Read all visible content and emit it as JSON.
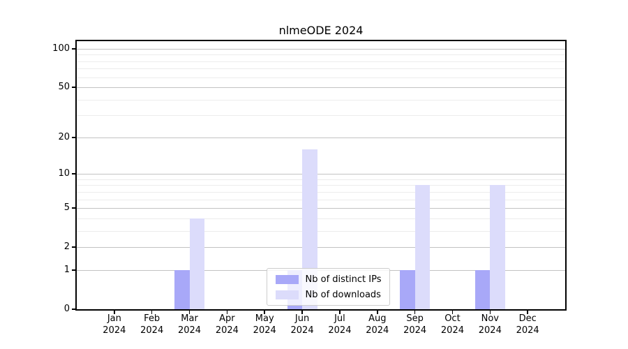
{
  "chart_data": {
    "type": "bar",
    "title": "nlmeODE 2024",
    "categories": [
      "Jan 2024",
      "Feb 2024",
      "Mar 2024",
      "Apr 2024",
      "May 2024",
      "Jun 2024",
      "Jul 2024",
      "Aug 2024",
      "Sep 2024",
      "Oct 2024",
      "Nov 2024",
      "Dec 2024"
    ],
    "series": [
      {
        "name": "Nb of distinct IPs",
        "color": "#a8a8f8",
        "values": [
          0,
          0,
          1,
          0,
          0,
          1,
          0,
          0,
          1,
          0,
          1,
          0
        ]
      },
      {
        "name": "Nb of downloads",
        "color": "#dcdcfb",
        "values": [
          0,
          0,
          4,
          0,
          0,
          16,
          0,
          0,
          8,
          0,
          8,
          0
        ]
      }
    ],
    "xlabel": "",
    "ylabel": "",
    "yscale": "log1p",
    "yticks": [
      0,
      1,
      2,
      5,
      10,
      20,
      50,
      100
    ],
    "minor_gridlines": [
      3,
      4,
      6,
      7,
      8,
      9,
      30,
      40,
      60,
      70,
      80,
      90
    ],
    "ylim": [
      0,
      115
    ],
    "grid": true,
    "legend_position": "lower center",
    "colors": {
      "major_grid": "#c2c2c2",
      "minor_grid": "#ececec",
      "axis": "#000000",
      "background": "#ffffff",
      "legend_border": "#cccccc"
    }
  }
}
